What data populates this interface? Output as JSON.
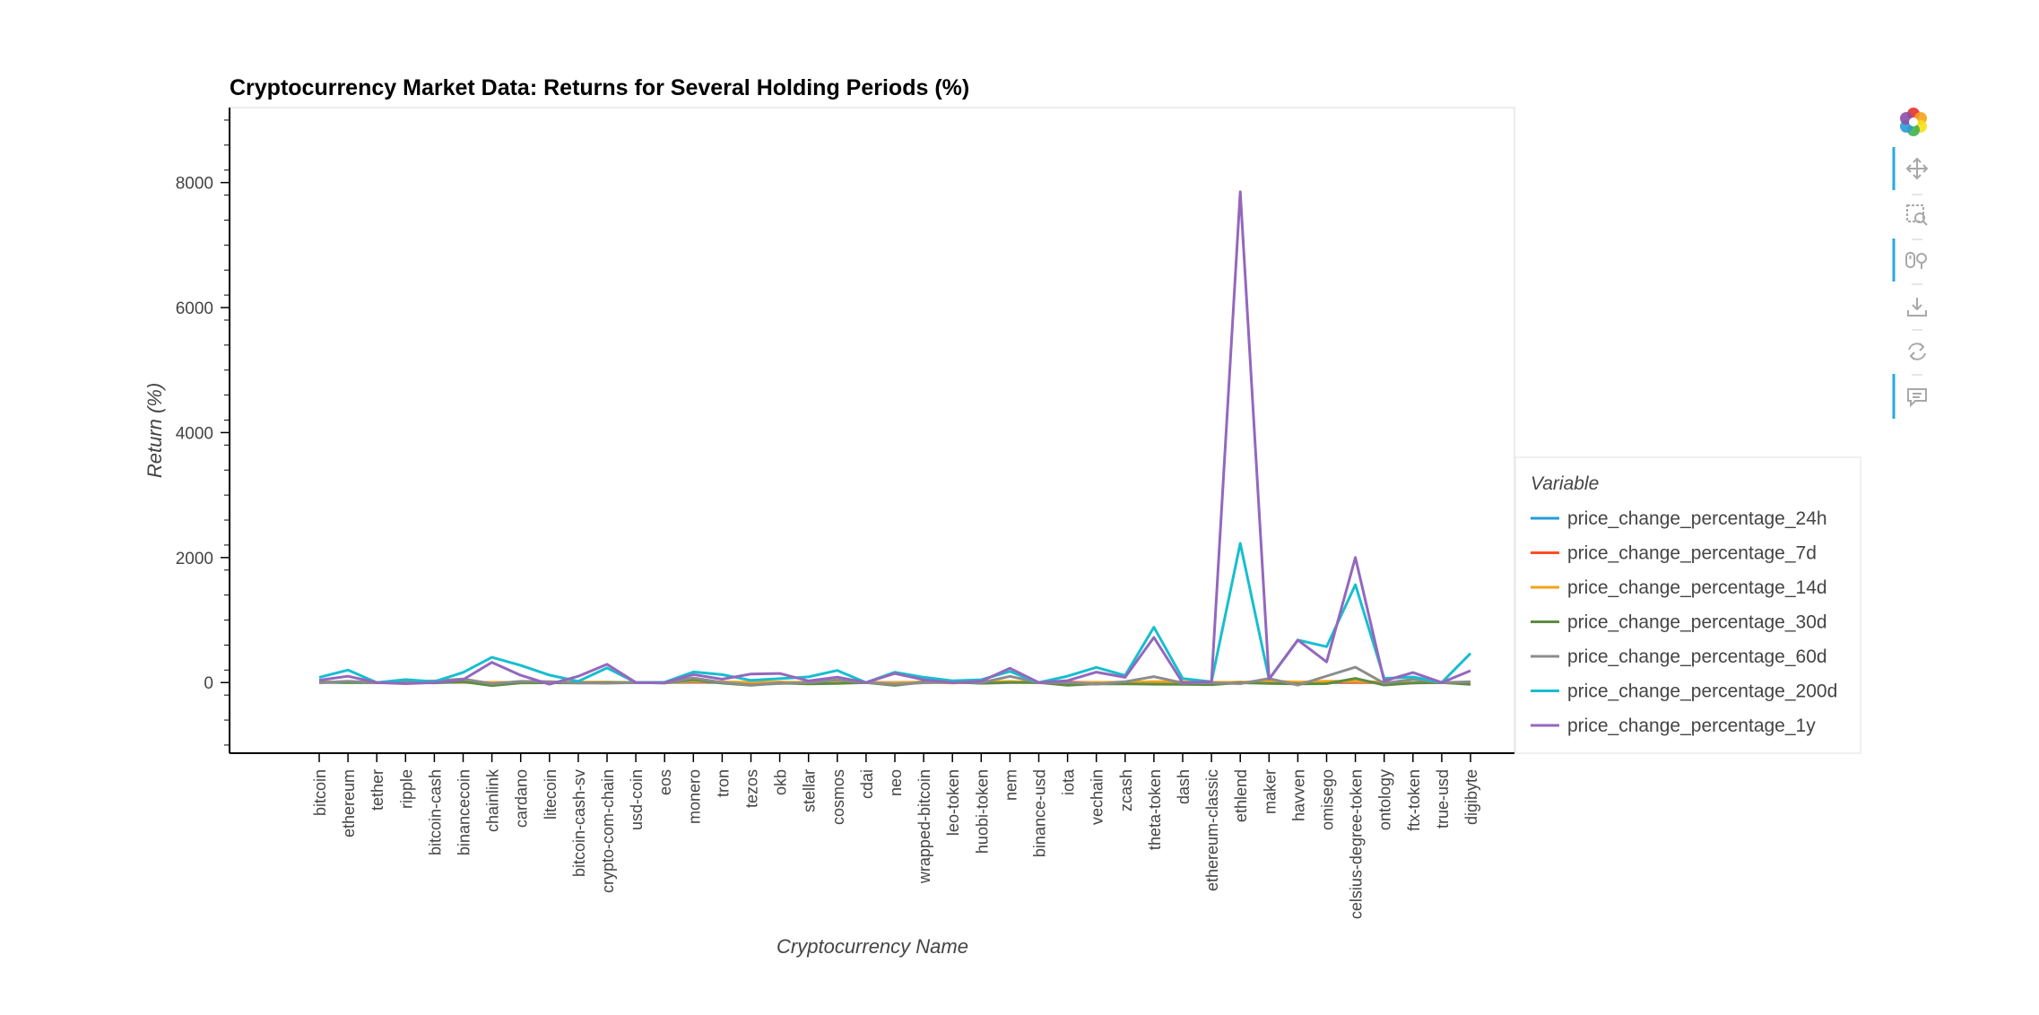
{
  "chart_data": {
    "type": "line",
    "title": "Cryptocurrency Market Data: Returns for Several Holding Periods (%)",
    "xlabel": "Cryptocurrency Name",
    "ylabel": "Return (%)",
    "ylim": [
      -1130,
      9200
    ],
    "yticks": [
      0,
      2000,
      4000,
      6000,
      8000
    ],
    "grid": false,
    "legend_position": "right",
    "legend_title": "Variable",
    "categories": [
      "bitcoin",
      "ethereum",
      "tether",
      "ripple",
      "bitcoin-cash",
      "binancecoin",
      "chainlink",
      "cardano",
      "litecoin",
      "bitcoin-cash-sv",
      "crypto-com-chain",
      "usd-coin",
      "eos",
      "monero",
      "tron",
      "tezos",
      "okb",
      "stellar",
      "cosmos",
      "cdai",
      "neo",
      "wrapped-bitcoin",
      "leo-token",
      "huobi-token",
      "nem",
      "binance-usd",
      "iota",
      "vechain",
      "zcash",
      "theta-token",
      "dash",
      "ethereum-classic",
      "ethlend",
      "maker",
      "havven",
      "omisego",
      "celsius-degree-token",
      "ontology",
      "ftx-token",
      "true-usd",
      "digibyte"
    ],
    "series": [
      {
        "name": "price_change_percentage_24h",
        "color": "#1f9ed8",
        "values": [
          1.1,
          0.7,
          0,
          -0.6,
          2.9,
          2.1,
          -0.2,
          0.5,
          1.0,
          0.4,
          -0.8,
          0,
          0.1,
          4.0,
          0.4,
          1.5,
          -2.0,
          -0.4,
          -1.7,
          0,
          0.5,
          1.2,
          0.6,
          1.5,
          4.3,
          0,
          -0.8,
          1.7,
          -0.2,
          -3.9,
          -0.6,
          2.1,
          -0.4,
          0.2,
          -1.7,
          -1.9,
          1.0,
          -0.3,
          -0.4,
          0,
          0.5
        ]
      },
      {
        "name": "price_change_percentage_7d",
        "color": "#ff4d26",
        "values": [
          7.6,
          9.4,
          0,
          -0.6,
          8.9,
          2.9,
          -2.9,
          1.8,
          2.6,
          1.7,
          2.3,
          0,
          0.2,
          11.9,
          3.2,
          1.3,
          8.1,
          -5.3,
          -1.0,
          0,
          -2.1,
          7.7,
          1.6,
          2.8,
          12.6,
          0,
          7.2,
          -2.9,
          5.7,
          2.5,
          -0.5,
          -3.9,
          7.2,
          -3.6,
          -0.5,
          4.8,
          4.7,
          0.6,
          -4.8,
          0,
          -8.1
        ]
      },
      {
        "name": "price_change_percentage_14d",
        "color": "#f2a418",
        "values": [
          6.2,
          5.4,
          0,
          2.2,
          14.7,
          4.9,
          3.9,
          1.7,
          8.3,
          7.2,
          6.6,
          0,
          -4.3,
          23.8,
          9.3,
          5.3,
          5.2,
          4.2,
          15.1,
          0,
          -3.3,
          6.1,
          -6.5,
          8.4,
          18.6,
          0,
          -6.2,
          2.2,
          5.7,
          14.0,
          13.8,
          5.3,
          3.9,
          25.1,
          8.0,
          21.3,
          18.6,
          6.9,
          -3.4,
          0,
          -16.5
        ]
      },
      {
        "name": "price_change_percentage_30d",
        "color": "#5d8c43",
        "values": [
          7.0,
          1.1,
          0,
          -0.7,
          -5.0,
          13.0,
          -48.0,
          -4.8,
          -3.2,
          -7.1,
          -1.0,
          0,
          -8.1,
          46.9,
          -9.3,
          -43.4,
          -9.9,
          -20.7,
          -13.8,
          0,
          -44.8,
          7.0,
          9.2,
          -11.7,
          0.6,
          0,
          -42.0,
          -20.0,
          -20.5,
          -26.5,
          -28.0,
          -33.6,
          -2.1,
          -15.9,
          -22.2,
          -18.5,
          65.9,
          -39.2,
          -6.6,
          0,
          -27.8
        ]
      },
      {
        "name": "price_change_percentage_60d",
        "color": "#8c8c8c",
        "values": [
          -3.3,
          22.5,
          0,
          7.3,
          26.2,
          58.6,
          -18.0,
          19.0,
          14.6,
          -5.8,
          -11.0,
          0,
          -7.7,
          73.5,
          2.7,
          -35.4,
          -16.3,
          0.2,
          42.0,
          0,
          -28.7,
          -3.3,
          11.9,
          -1.6,
          99.6,
          0,
          1.3,
          -27.3,
          12.8,
          95.3,
          -6.3,
          -4.1,
          -17.6,
          65.8,
          -40.6,
          103.4,
          246.1,
          -10.4,
          52.7,
          0,
          12.7
        ]
      },
      {
        "name": "price_change_percentage_200d",
        "color": "#17becf",
        "values": [
          83.5,
          200.0,
          0,
          47.9,
          14.5,
          162.0,
          403.5,
          275.0,
          119.2,
          18.5,
          235.1,
          0,
          5.0,
          170.3,
          127.5,
          35.1,
          62.6,
          91.6,
          194.6,
          0,
          164.9,
          85.1,
          28.5,
          45.1,
          178.5,
          0,
          101.8,
          243.6,
          113.6,
          885.5,
          63.9,
          11.8,
          2227.9,
          55.8,
          681.3,
          573.8,
          1565.8,
          67.0,
          90.1,
          0,
          466.8
        ]
      },
      {
        "name": "price_change_percentage_1y",
        "color": "#9467bd",
        "values": [
          37.5,
          101.6,
          0,
          -17.6,
          0.3,
          47.0,
          323.0,
          117.1,
          -26.4,
          101.2,
          292.0,
          0,
          -1.7,
          128.0,
          53.0,
          136.6,
          145.8,
          26.7,
          86.5,
          0,
          145.2,
          44.9,
          -4.3,
          21.8,
          229.2,
          0,
          31.4,
          166.9,
          83.8,
          721.6,
          -3.2,
          13.1,
          7852.1,
          53.1,
          681.3,
          330.3,
          2001.0,
          24.4,
          160.5,
          0,
          189.3
        ]
      }
    ]
  },
  "toolbar": {
    "items": [
      {
        "name": "bokeh-logo-icon",
        "active": false
      },
      {
        "name": "pan-icon",
        "active": true
      },
      {
        "name": "box-zoom-icon",
        "active": false
      },
      {
        "name": "wheel-zoom-icon",
        "active": true
      },
      {
        "name": "save-icon",
        "active": false
      },
      {
        "name": "reset-icon",
        "active": false
      },
      {
        "name": "hover-icon",
        "active": true
      }
    ],
    "accent_color": "#26aae1"
  }
}
